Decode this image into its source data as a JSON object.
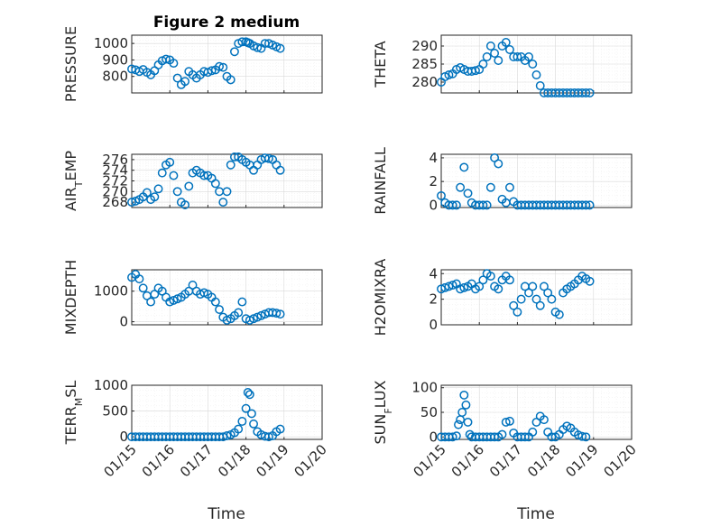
{
  "figure": {
    "title": "Figure 2 medium",
    "marker_color": "#0072bd"
  },
  "chart_data": [
    {
      "type": "scatter",
      "ylabel": "PRESSURE",
      "ylim": [
        700,
        1050
      ],
      "yticks": [
        800,
        900,
        1000
      ],
      "ytick_labels": [
        "800",
        "900",
        "1000"
      ],
      "x_range": [
        "01/15",
        "01/20"
      ],
      "xtick_labels": [
        "01/15",
        "01/16",
        "01/17",
        "01/18",
        "01/19",
        "01/20"
      ],
      "grid": true,
      "x": [
        0.0,
        0.1,
        0.2,
        0.3,
        0.4,
        0.5,
        0.6,
        0.7,
        0.8,
        0.9,
        1.0,
        1.1,
        1.2,
        1.3,
        1.4,
        1.5,
        1.6,
        1.7,
        1.8,
        1.9,
        2.0,
        2.1,
        2.2,
        2.3,
        2.4,
        2.5,
        2.6,
        2.7,
        2.8,
        2.9,
        3.0,
        3.05,
        3.1,
        3.2,
        3.3,
        3.4,
        3.5,
        3.6,
        3.7,
        3.8,
        3.9
      ],
      "y": [
        845,
        840,
        830,
        842,
        825,
        810,
        835,
        870,
        895,
        905,
        900,
        880,
        790,
        750,
        770,
        830,
        810,
        790,
        810,
        830,
        825,
        835,
        840,
        860,
        855,
        800,
        780,
        950,
        1000,
        1010,
        1010,
        1005,
        1000,
        985,
        975,
        970,
        1000,
        1000,
        990,
        980,
        970
      ]
    },
    {
      "type": "scatter",
      "ylabel": "THETA",
      "ylim": [
        277,
        293
      ],
      "yticks": [
        280,
        285,
        290
      ],
      "ytick_labels": [
        "280",
        "285",
        "290"
      ],
      "x_range": [
        "01/15",
        "01/20"
      ],
      "xtick_labels": [
        "01/15",
        "01/16",
        "01/17",
        "01/18",
        "01/19",
        "01/20"
      ],
      "grid": true,
      "x": [
        0.0,
        0.1,
        0.2,
        0.3,
        0.4,
        0.5,
        0.6,
        0.7,
        0.8,
        0.9,
        1.0,
        1.1,
        1.2,
        1.3,
        1.4,
        1.5,
        1.6,
        1.7,
        1.8,
        1.9,
        2.0,
        2.1,
        2.2,
        2.3,
        2.4,
        2.5,
        2.6,
        2.7,
        2.8,
        2.9,
        3.0,
        3.1,
        3.2,
        3.3,
        3.4,
        3.5,
        3.6,
        3.7,
        3.8,
        3.9
      ],
      "y": [
        280,
        281.5,
        282,
        282.3,
        283.5,
        284,
        283.5,
        283,
        283,
        283.2,
        283.5,
        285,
        287,
        290,
        288,
        286,
        290,
        291,
        289,
        287,
        287,
        287,
        286,
        287,
        285,
        282,
        279,
        277,
        276.5,
        276.5,
        276.5,
        276.8,
        277,
        277,
        277,
        277,
        277,
        276.5,
        276.5,
        276.8
      ]
    },
    {
      "type": "scatter",
      "ylabel": "AIR_TEMP",
      "ylim": [
        267,
        277
      ],
      "yticks": [
        268,
        270,
        272,
        274,
        276
      ],
      "ytick_labels": [
        "268",
        "270",
        "272",
        "274",
        "276"
      ],
      "x_range": [
        "01/15",
        "01/20"
      ],
      "xtick_labels": [
        "01/15",
        "01/16",
        "01/17",
        "01/18",
        "01/19",
        "01/20"
      ],
      "grid": true,
      "x": [
        0.0,
        0.1,
        0.2,
        0.3,
        0.4,
        0.5,
        0.6,
        0.7,
        0.8,
        0.9,
        1.0,
        1.1,
        1.2,
        1.3,
        1.4,
        1.5,
        1.6,
        1.7,
        1.8,
        1.9,
        2.0,
        2.1,
        2.2,
        2.3,
        2.4,
        2.5,
        2.6,
        2.7,
        2.8,
        2.9,
        3.0,
        3.1,
        3.2,
        3.3,
        3.4,
        3.5,
        3.6,
        3.7,
        3.8,
        3.9
      ],
      "y": [
        268,
        268.2,
        268.5,
        269,
        269.8,
        268.5,
        269,
        270.5,
        273.5,
        275,
        275.5,
        273,
        270,
        268,
        267.5,
        271,
        273.5,
        274,
        273.5,
        273,
        273,
        272.5,
        271.5,
        270,
        268,
        270,
        275,
        276.5,
        276.5,
        276,
        275.5,
        275,
        274,
        275,
        276,
        276.3,
        276.2,
        276,
        275,
        274
      ]
    },
    {
      "type": "scatter",
      "ylabel": "RAINFALL",
      "ylim": [
        -0.2,
        4.3
      ],
      "yticks": [
        0,
        2,
        4
      ],
      "ytick_labels": [
        "0",
        "2",
        "4"
      ],
      "x_range": [
        "01/15",
        "01/20"
      ],
      "xtick_labels": [
        "01/15",
        "01/16",
        "01/17",
        "01/18",
        "01/19",
        "01/20"
      ],
      "grid": true,
      "x": [
        0.0,
        0.1,
        0.2,
        0.3,
        0.4,
        0.5,
        0.6,
        0.7,
        0.8,
        0.9,
        1.0,
        1.1,
        1.2,
        1.3,
        1.4,
        1.5,
        1.6,
        1.7,
        1.8,
        1.9,
        2.0,
        2.1,
        2.2,
        2.3,
        2.4,
        2.5,
        2.6,
        2.7,
        2.8,
        2.9,
        3.0,
        3.1,
        3.2,
        3.3,
        3.4,
        3.5,
        3.6,
        3.7,
        3.8,
        3.9
      ],
      "y": [
        0.8,
        0.2,
        0,
        0,
        0,
        1.5,
        3.2,
        1.0,
        0.2,
        0,
        0,
        0,
        0,
        1.5,
        4.0,
        3.5,
        0.5,
        0.2,
        1.5,
        0.3,
        0,
        0,
        0,
        0,
        0,
        0,
        0,
        0,
        0,
        0,
        0,
        0,
        0,
        0,
        0,
        0,
        0,
        0,
        0,
        0
      ]
    },
    {
      "type": "scatter",
      "ylabel": "MIXDEPTH",
      "ylim": [
        -100,
        1700
      ],
      "yticks": [
        0,
        1000
      ],
      "ytick_labels": [
        "0",
        "1000"
      ],
      "x_range": [
        "01/15",
        "01/20"
      ],
      "xtick_labels": [
        "01/15",
        "01/16",
        "01/17",
        "01/18",
        "01/19",
        "01/20"
      ],
      "grid": true,
      "x": [
        0.0,
        0.1,
        0.2,
        0.3,
        0.4,
        0.5,
        0.6,
        0.7,
        0.8,
        0.9,
        1.0,
        1.1,
        1.2,
        1.3,
        1.4,
        1.5,
        1.6,
        1.7,
        1.8,
        1.9,
        2.0,
        2.1,
        2.2,
        2.3,
        2.4,
        2.5,
        2.6,
        2.7,
        2.8,
        2.9,
        3.0,
        3.1,
        3.2,
        3.3,
        3.4,
        3.5,
        3.6,
        3.7,
        3.8,
        3.9
      ],
      "y": [
        1450,
        1550,
        1400,
        1100,
        850,
        650,
        900,
        1100,
        1000,
        800,
        650,
        700,
        750,
        800,
        900,
        1000,
        1200,
        1000,
        900,
        950,
        900,
        800,
        650,
        400,
        150,
        50,
        100,
        200,
        300,
        650,
        100,
        50,
        100,
        150,
        200,
        250,
        300,
        300,
        280,
        250
      ]
    },
    {
      "type": "scatter",
      "ylabel": "H2OMIXRA",
      "ylim": [
        0,
        4.3
      ],
      "yticks": [
        0,
        2,
        4
      ],
      "ytick_labels": [
        "0",
        "2",
        "4"
      ],
      "x_range": [
        "01/15",
        "01/20"
      ],
      "xtick_labels": [
        "01/15",
        "01/16",
        "01/17",
        "01/18",
        "01/19",
        "01/20"
      ],
      "grid": true,
      "x": [
        0.0,
        0.1,
        0.2,
        0.3,
        0.4,
        0.5,
        0.6,
        0.7,
        0.8,
        0.9,
        1.0,
        1.1,
        1.2,
        1.3,
        1.4,
        1.5,
        1.6,
        1.7,
        1.8,
        1.9,
        2.0,
        2.1,
        2.2,
        2.3,
        2.4,
        2.5,
        2.6,
        2.7,
        2.8,
        2.9,
        3.0,
        3.1,
        3.2,
        3.3,
        3.4,
        3.5,
        3.6,
        3.7,
        3.8,
        3.9
      ],
      "y": [
        2.8,
        2.9,
        3.0,
        3.1,
        3.2,
        2.8,
        2.9,
        3.0,
        3.2,
        2.8,
        3.0,
        3.5,
        4.0,
        3.8,
        3.0,
        2.8,
        3.5,
        3.8,
        3.5,
        1.5,
        1.0,
        2.0,
        3.0,
        2.5,
        3.0,
        2.0,
        1.5,
        3.0,
        2.5,
        2.0,
        1.0,
        0.8,
        2.5,
        2.8,
        3.0,
        3.2,
        3.5,
        3.8,
        3.6,
        3.4
      ]
    },
    {
      "type": "scatter",
      "ylabel": "TERR_MSL",
      "ylim": [
        -50,
        1000
      ],
      "yticks": [
        0,
        500,
        1000
      ],
      "ytick_labels": [
        "0",
        "500",
        "1000"
      ],
      "x_range": [
        "01/15",
        "01/20"
      ],
      "xtick_labels": [
        "01/15",
        "01/16",
        "01/17",
        "01/18",
        "01/19",
        "01/20"
      ],
      "grid": true,
      "x": [
        0.0,
        0.1,
        0.2,
        0.3,
        0.4,
        0.5,
        0.6,
        0.7,
        0.8,
        0.9,
        1.0,
        1.1,
        1.2,
        1.3,
        1.4,
        1.5,
        1.6,
        1.7,
        1.8,
        1.9,
        2.0,
        2.1,
        2.2,
        2.3,
        2.4,
        2.5,
        2.6,
        2.7,
        2.8,
        2.9,
        3.0,
        3.05,
        3.1,
        3.15,
        3.2,
        3.3,
        3.4,
        3.5,
        3.6,
        3.7,
        3.8,
        3.9
      ],
      "y": [
        0,
        0,
        0,
        0,
        0,
        0,
        0,
        0,
        0,
        0,
        0,
        0,
        0,
        0,
        0,
        0,
        0,
        0,
        0,
        0,
        0,
        0,
        0,
        0,
        0,
        20,
        40,
        80,
        150,
        300,
        550,
        860,
        820,
        450,
        250,
        100,
        40,
        10,
        0,
        20,
        100,
        150
      ]
    },
    {
      "type": "scatter",
      "ylabel": "SUN_FLUX",
      "ylim": [
        -5,
        105
      ],
      "yticks": [
        0,
        50,
        100
      ],
      "ytick_labels": [
        "0",
        "50",
        "100"
      ],
      "x_range": [
        "01/15",
        "01/20"
      ],
      "xtick_labels": [
        "01/15",
        "01/16",
        "01/17",
        "01/18",
        "01/19",
        "01/20"
      ],
      "grid": true,
      "x": [
        0.0,
        0.1,
        0.2,
        0.3,
        0.4,
        0.45,
        0.5,
        0.55,
        0.6,
        0.65,
        0.7,
        0.75,
        0.8,
        0.9,
        1.0,
        1.1,
        1.2,
        1.3,
        1.4,
        1.5,
        1.6,
        1.7,
        1.8,
        1.9,
        2.0,
        2.1,
        2.2,
        2.3,
        2.4,
        2.5,
        2.6,
        2.7,
        2.8,
        2.9,
        3.0,
        3.1,
        3.2,
        3.3,
        3.4,
        3.5,
        3.6,
        3.7,
        3.8
      ],
      "y": [
        0,
        0,
        0,
        0,
        2,
        25,
        35,
        50,
        85,
        65,
        30,
        5,
        0,
        0,
        0,
        0,
        0,
        0,
        0,
        0,
        5,
        30,
        32,
        8,
        0,
        0,
        0,
        0,
        10,
        30,
        42,
        35,
        10,
        0,
        0,
        5,
        15,
        22,
        18,
        10,
        4,
        1,
        0
      ]
    }
  ],
  "xlabel": "Time"
}
